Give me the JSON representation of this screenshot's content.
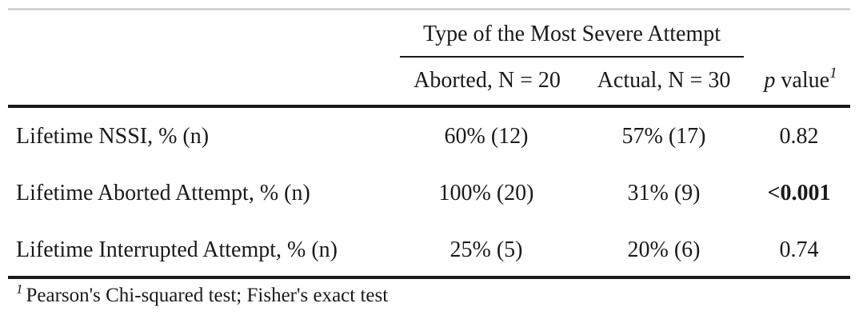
{
  "table": {
    "spanner": "Type of the Most Severe Attempt",
    "columns": {
      "aborted": "Aborted, N = 20",
      "actual": "Actual, N = 30",
      "p_italic": "p",
      "p_rest": " value",
      "p_marker": "1"
    },
    "rows": [
      {
        "label": "Lifetime NSSI, % (n)",
        "aborted": "60% (12)",
        "actual": "57% (17)",
        "p": "0.82"
      },
      {
        "label": "Lifetime Aborted Attempt, % (n)",
        "aborted": "100% (20)",
        "actual": "31% (9)",
        "p": "<0.001"
      },
      {
        "label": "Lifetime Interrupted Attempt, % (n)",
        "aborted": "25% (5)",
        "actual": "20% (6)",
        "p": "0.74"
      }
    ],
    "footnote": {
      "marker": "1",
      "text": "Pearson's Chi-squared test; Fisher's exact test"
    }
  }
}
